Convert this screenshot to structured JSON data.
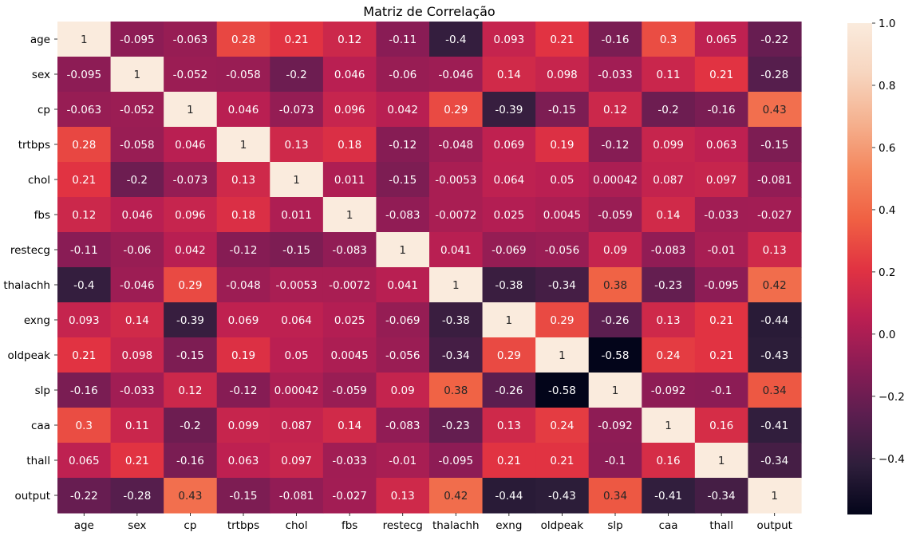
{
  "chart_data": {
    "type": "heatmap",
    "title": "Matriz de Correlação",
    "xlabel": "",
    "ylabel": "",
    "labels": [
      "age",
      "sex",
      "cp",
      "trtbps",
      "chol",
      "fbs",
      "restecg",
      "thalachh",
      "exng",
      "oldpeak",
      "slp",
      "caa",
      "thall",
      "output"
    ],
    "cells": [
      [
        "1",
        "-0.095",
        "-0.063",
        "0.28",
        "0.21",
        "0.12",
        "-0.11",
        "-0.4",
        "0.093",
        "0.21",
        "-0.16",
        "0.3",
        "0.065",
        "-0.22"
      ],
      [
        "-0.095",
        "1",
        "-0.052",
        "-0.058",
        "-0.2",
        "0.046",
        "-0.06",
        "-0.046",
        "0.14",
        "0.098",
        "-0.033",
        "0.11",
        "0.21",
        "-0.28"
      ],
      [
        "-0.063",
        "-0.052",
        "1",
        "0.046",
        "-0.073",
        "0.096",
        "0.042",
        "0.29",
        "-0.39",
        "-0.15",
        "0.12",
        "-0.2",
        "-0.16",
        "0.43"
      ],
      [
        "0.28",
        "-0.058",
        "0.046",
        "1",
        "0.13",
        "0.18",
        "-0.12",
        "-0.048",
        "0.069",
        "0.19",
        "-0.12",
        "0.099",
        "0.063",
        "-0.15"
      ],
      [
        "0.21",
        "-0.2",
        "-0.073",
        "0.13",
        "1",
        "0.011",
        "-0.15",
        "-0.0053",
        "0.064",
        "0.05",
        "0.00042",
        "0.087",
        "0.097",
        "-0.081"
      ],
      [
        "0.12",
        "0.046",
        "0.096",
        "0.18",
        "0.011",
        "1",
        "-0.083",
        "-0.0072",
        "0.025",
        "0.0045",
        "-0.059",
        "0.14",
        "-0.033",
        "-0.027"
      ],
      [
        "-0.11",
        "-0.06",
        "0.042",
        "-0.12",
        "-0.15",
        "-0.083",
        "1",
        "0.041",
        "-0.069",
        "-0.056",
        "0.09",
        "-0.083",
        "-0.01",
        "0.13"
      ],
      [
        "-0.4",
        "-0.046",
        "0.29",
        "-0.048",
        "-0.0053",
        "-0.0072",
        "0.041",
        "1",
        "-0.38",
        "-0.34",
        "0.38",
        "-0.23",
        "-0.095",
        "0.42"
      ],
      [
        "0.093",
        "0.14",
        "-0.39",
        "0.069",
        "0.064",
        "0.025",
        "-0.069",
        "-0.38",
        "1",
        "0.29",
        "-0.26",
        "0.13",
        "0.21",
        "-0.44"
      ],
      [
        "0.21",
        "0.098",
        "-0.15",
        "0.19",
        "0.05",
        "0.0045",
        "-0.056",
        "-0.34",
        "0.29",
        "1",
        "-0.58",
        "0.24",
        "0.21",
        "-0.43"
      ],
      [
        "-0.16",
        "-0.033",
        "0.12",
        "-0.12",
        "0.00042",
        "-0.059",
        "0.09",
        "0.38",
        "-0.26",
        "-0.58",
        "1",
        "-0.092",
        "-0.1",
        "0.34"
      ],
      [
        "0.3",
        "0.11",
        "-0.2",
        "0.099",
        "0.087",
        "0.14",
        "-0.083",
        "-0.23",
        "0.13",
        "0.24",
        "-0.092",
        "1",
        "0.16",
        "-0.41"
      ],
      [
        "0.065",
        "0.21",
        "-0.16",
        "0.063",
        "0.097",
        "-0.033",
        "-0.01",
        "-0.095",
        "0.21",
        "0.21",
        "-0.1",
        "0.16",
        "1",
        "-0.34"
      ],
      [
        "-0.22",
        "-0.28",
        "0.43",
        "-0.15",
        "-0.081",
        "-0.027",
        "0.13",
        "0.42",
        "-0.44",
        "-0.43",
        "0.34",
        "-0.41",
        "-0.34",
        "1"
      ]
    ],
    "colorbar": {
      "min": -0.58,
      "max": 1.0,
      "ticks": [
        "1.0",
        "0.8",
        "0.6",
        "0.4",
        "0.2",
        "0.0",
        "−0.2",
        "−0.4"
      ],
      "tick_values": [
        1.0,
        0.8,
        0.6,
        0.4,
        0.2,
        0.0,
        -0.2,
        -0.4
      ]
    },
    "colormap": "rocket",
    "colormap_stops": [
      "#03051a",
      "#2e1e3b",
      "#5a1e4f",
      "#8a1c55",
      "#bb1f52",
      "#e13342",
      "#f06043",
      "#f4875e",
      "#f5b290",
      "#f7d6c0",
      "#faebdd"
    ],
    "grid": false,
    "legend": "colorbar-right"
  }
}
